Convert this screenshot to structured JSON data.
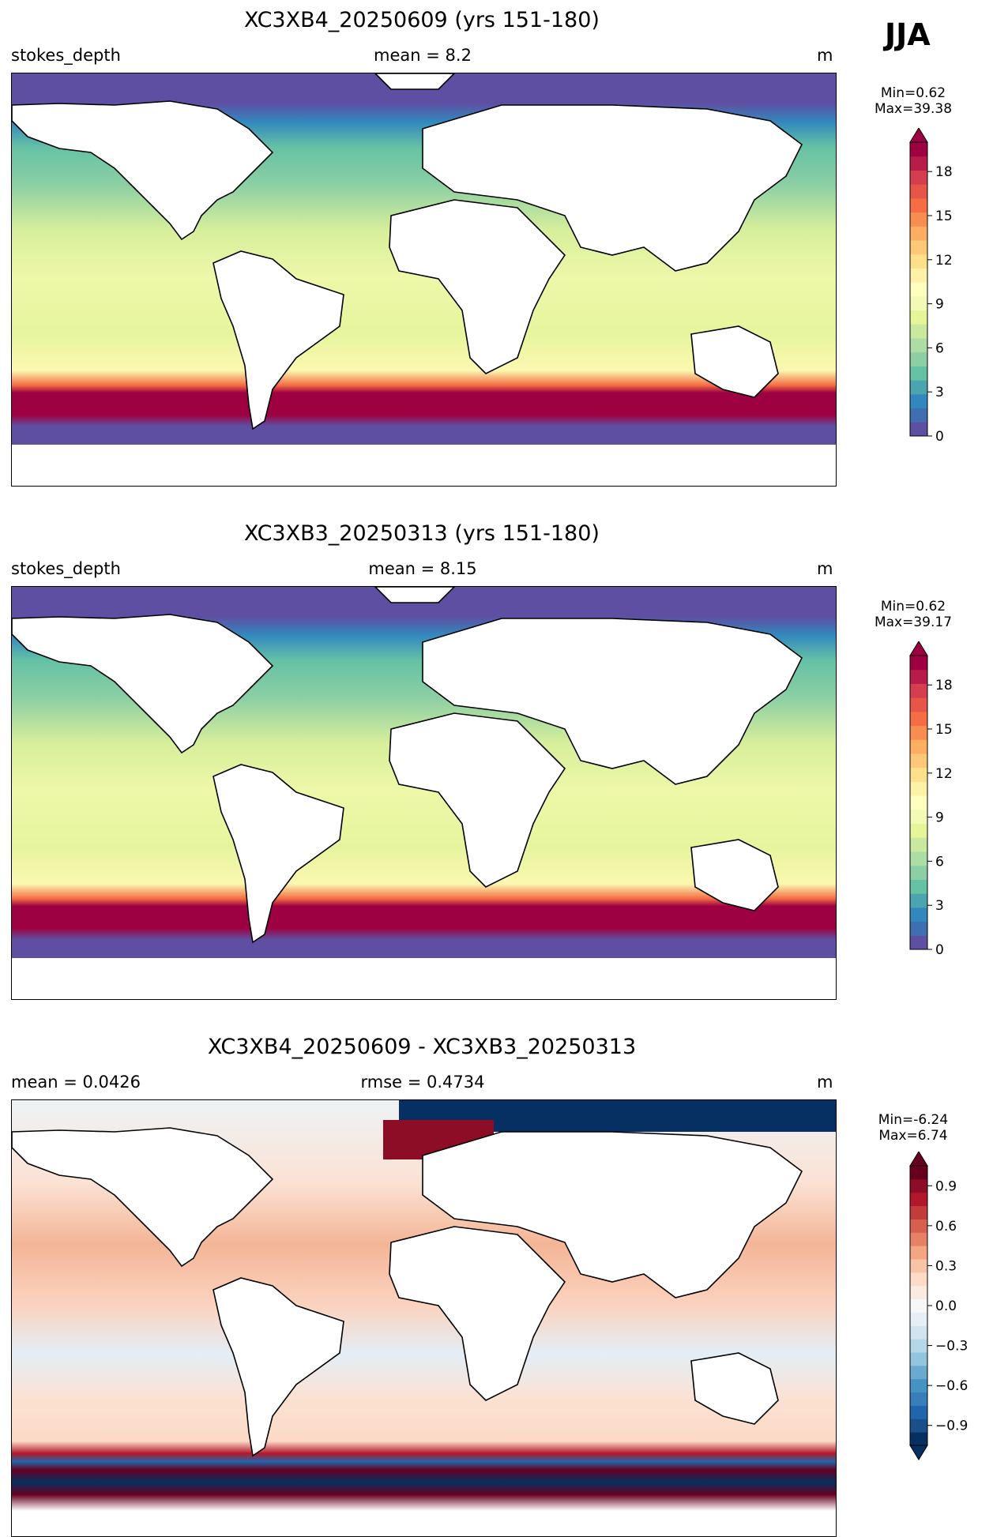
{
  "season_label": "JJA",
  "panels": [
    {
      "title": "XC3XB4_20250609 (yrs 151-180)",
      "left_label": "stokes_depth",
      "center_label": "mean = 8.2",
      "right_label": "m",
      "min_text": "Min=0.62",
      "max_text": "Max=39.38",
      "colorbar": {
        "ticks": [
          "0",
          "3",
          "6",
          "9",
          "12",
          "15",
          "18"
        ],
        "vmin": 0,
        "vmax": 20,
        "extend": "max",
        "colormap": "Spectral_r"
      }
    },
    {
      "title": "XC3XB3_20250313 (yrs 151-180)",
      "left_label": "stokes_depth",
      "center_label": "mean = 8.15",
      "right_label": "m",
      "min_text": "Min=0.62",
      "max_text": "Max=39.17",
      "colorbar": {
        "ticks": [
          "0",
          "3",
          "6",
          "9",
          "12",
          "15",
          "18"
        ],
        "vmin": 0,
        "vmax": 20,
        "extend": "max",
        "colormap": "Spectral_r"
      }
    },
    {
      "title": "XC3XB4_20250609 - XC3XB3_20250313",
      "left_label": "mean = 0.0426",
      "center_label": "rmse = 0.4734",
      "right_label": "m",
      "min_text": "Min=-6.24",
      "max_text": "Max=6.74",
      "colorbar": {
        "ticks": [
          "−0.9",
          "−0.6",
          "−0.3",
          "0.0",
          "0.3",
          "0.6",
          "0.9"
        ],
        "vmin": -1.05,
        "vmax": 1.05,
        "extend": "both",
        "colormap": "RdBu_r"
      }
    }
  ],
  "chart_data": [
    {
      "type": "heatmap",
      "title": "XC3XB4_20250609 (yrs 151-180)",
      "variable": "stokes_depth",
      "units": "m",
      "season": "JJA",
      "mean": 8.2,
      "min": 0.62,
      "max": 39.38,
      "colorbar_range": [
        0,
        20
      ],
      "colorbar_ticks": [
        0,
        3,
        6,
        9,
        12,
        15,
        18
      ]
    },
    {
      "type": "heatmap",
      "title": "XC3XB3_20250313 (yrs 151-180)",
      "variable": "stokes_depth",
      "units": "m",
      "season": "JJA",
      "mean": 8.15,
      "min": 0.62,
      "max": 39.17,
      "colorbar_range": [
        0,
        20
      ],
      "colorbar_ticks": [
        0,
        3,
        6,
        9,
        12,
        15,
        18
      ]
    },
    {
      "type": "heatmap",
      "title": "XC3XB4_20250609 - XC3XB3_20250313",
      "units": "m",
      "season": "JJA",
      "mean": 0.0426,
      "rmse": 0.4734,
      "min": -6.24,
      "max": 6.74,
      "colorbar_range": [
        -1.05,
        1.05
      ],
      "colorbar_ticks": [
        -0.9,
        -0.6,
        -0.3,
        0.0,
        0.3,
        0.6,
        0.9
      ]
    }
  ]
}
